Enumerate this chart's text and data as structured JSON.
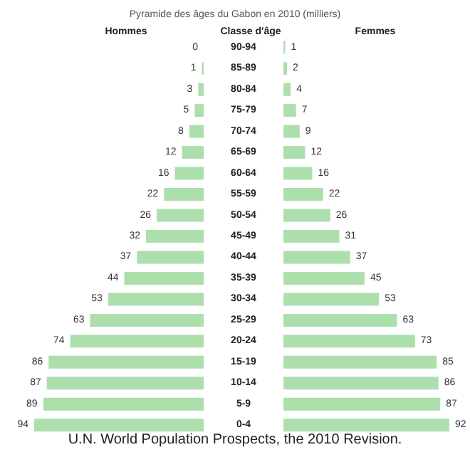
{
  "chart_data": [
    {
      "type": "bar",
      "orientation": "horizontal",
      "title": "Pyramide des âges du Gabon en 2010 (milliers)",
      "xlabel": "Hommes",
      "ylabel": "Classe d'âge",
      "categories": [
        "90-94",
        "85-89",
        "80-84",
        "75-79",
        "70-74",
        "65-69",
        "60-64",
        "55-59",
        "50-54",
        "45-49",
        "40-44",
        "35-39",
        "30-34",
        "25-29",
        "20-24",
        "15-19",
        "10-14",
        "5-9",
        "0-4"
      ],
      "values": [
        0,
        1,
        3,
        5,
        8,
        12,
        16,
        22,
        26,
        32,
        37,
        44,
        53,
        63,
        74,
        86,
        87,
        89,
        94
      ],
      "color": "#addfad",
      "tick_labels": "y",
      "data_labels": true,
      "grid": false,
      "annotations": [
        "U.N. World Population Prospects, the 2010 Revision."
      ]
    },
    {
      "type": "bar",
      "orientation": "horizontal",
      "xlabel": "Femmes",
      "values": [
        1,
        2,
        4,
        7,
        9,
        12,
        16,
        22,
        26,
        31,
        37,
        45,
        53,
        63,
        73,
        85,
        86,
        87,
        92
      ],
      "color": "#addfad",
      "tick_labels": false,
      "data_labels": true,
      "grid": false
    }
  ]
}
